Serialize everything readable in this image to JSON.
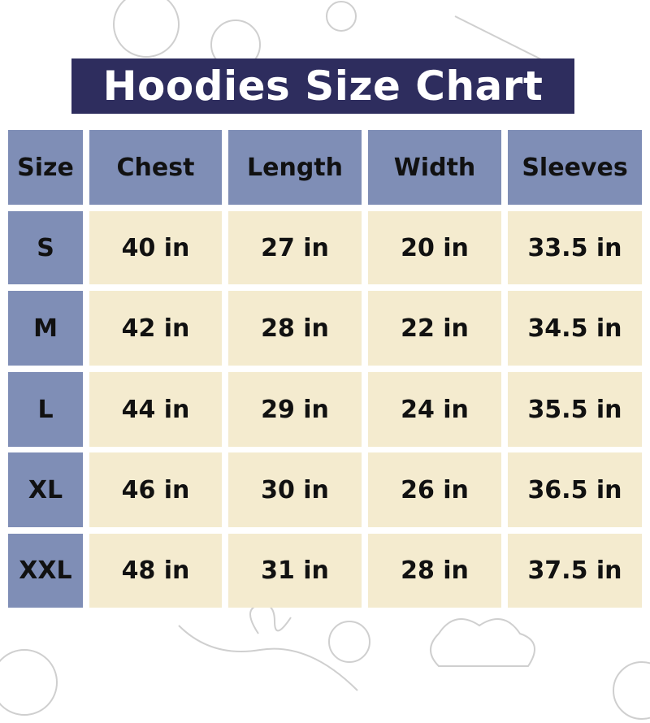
{
  "title": "Hoodies Size Chart",
  "colors": {
    "title_bg": "#2e2d5e",
    "header_bg": "#7f8eb6",
    "cell_bg": "#f4ebcf"
  },
  "chart_data": {
    "type": "table",
    "title": "Hoodies Size Chart",
    "columns": [
      "Size",
      "Chest",
      "Length",
      "Width",
      "Sleeves"
    ],
    "rows": [
      [
        "S",
        "40 in",
        "27 in",
        "20 in",
        "33.5 in"
      ],
      [
        "M",
        "42 in",
        "28 in",
        "22 in",
        "34.5 in"
      ],
      [
        "L",
        "44 in",
        "29 in",
        "24 in",
        "35.5 in"
      ],
      [
        "XL",
        "46 in",
        "30 in",
        "26 in",
        "36.5 in"
      ],
      [
        "XXL",
        "48 in",
        "31 in",
        "28 in",
        "37.5 in"
      ]
    ]
  }
}
